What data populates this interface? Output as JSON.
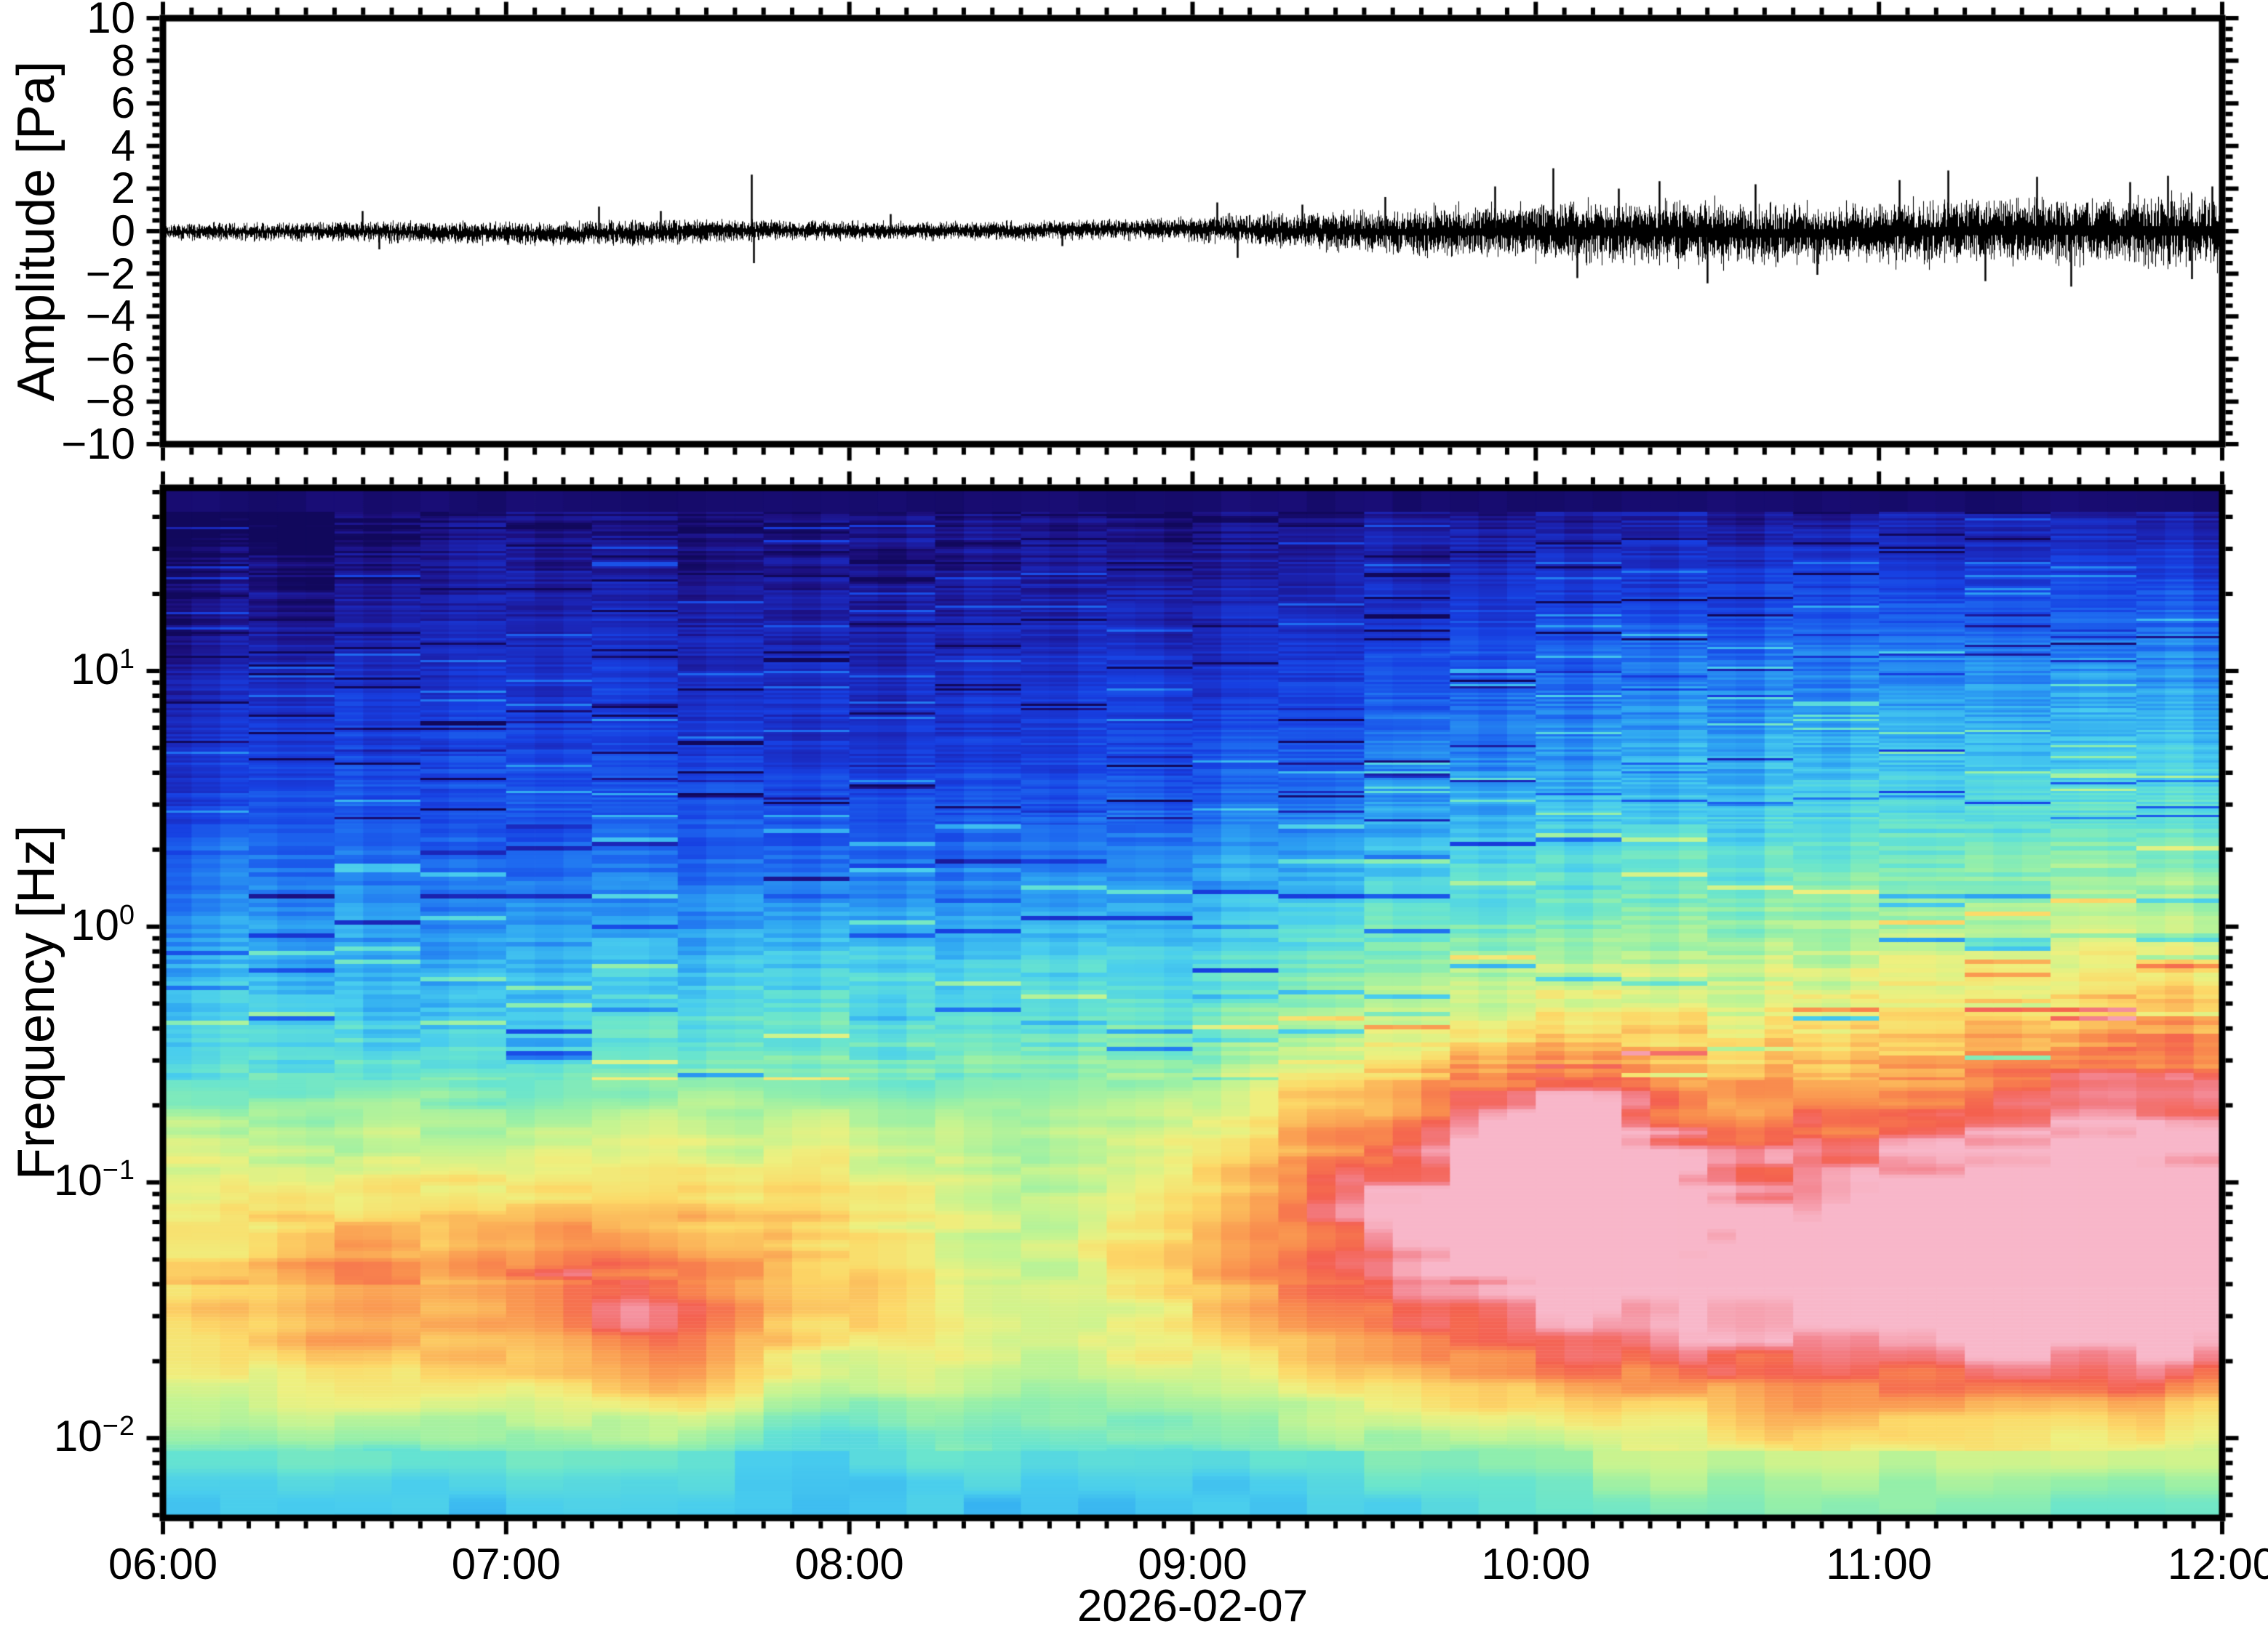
{
  "figure": {
    "background": "#ffffff",
    "frame_color": "#000000",
    "text_color": "#000000",
    "x_axis": {
      "start_hour": 6,
      "end_hour": 12,
      "major_step_min": 60,
      "minor_step_min": 5,
      "hour_ticks": [
        {
          "hour": 6,
          "label": "06:00"
        },
        {
          "hour": 7,
          "label": "07:00"
        },
        {
          "hour": 8,
          "label": "08:00"
        },
        {
          "hour": 9,
          "label": "09:00"
        },
        {
          "hour": 10,
          "label": "10:00"
        },
        {
          "hour": 11,
          "label": "11:00"
        },
        {
          "hour": 12,
          "label": "12:00"
        }
      ],
      "date_label": "2026-02-07"
    },
    "top_panel": {
      "ylabel": "Amplitude [Pa]",
      "ylim": [
        -10,
        10
      ],
      "ytick_major_pa": 2,
      "ytick_minor_pa": 0.5,
      "yticks": [
        {
          "pa": 10,
          "label": "10"
        },
        {
          "pa": 8,
          "label": "8"
        },
        {
          "pa": 6,
          "label": "6"
        },
        {
          "pa": 4,
          "label": "4"
        },
        {
          "pa": 2,
          "label": "2"
        },
        {
          "pa": 0,
          "label": "0"
        },
        {
          "pa": -2,
          "label": "−2"
        },
        {
          "pa": -4,
          "label": "−4"
        },
        {
          "pa": -6,
          "label": "−6"
        },
        {
          "pa": -8,
          "label": "−8"
        },
        {
          "pa": -10,
          "label": "−10"
        }
      ]
    },
    "bottom_panel": {
      "ylabel": "Frequency [Hz]",
      "yscale": "log",
      "flim_hz": [
        0.0049,
        52
      ],
      "yticks": [
        {
          "log10": 1,
          "mantissa": "10",
          "exponent": "1"
        },
        {
          "log10": 0,
          "mantissa": "10",
          "exponent": "0"
        },
        {
          "log10": -1,
          "mantissa": "10",
          "exponent": "−1"
        },
        {
          "log10": -2,
          "mantissa": "10",
          "exponent": "−2"
        }
      ]
    }
  },
  "chart_data": [
    {
      "type": "line",
      "name": "infrasound-waveform",
      "ylabel": "Amplitude [Pa]",
      "ylim": [
        -10,
        10
      ],
      "x_hours": [
        6,
        12
      ],
      "envelope_sigma_pa": [
        [
          6.0,
          0.21
        ],
        [
          6.5,
          0.25
        ],
        [
          6.8,
          0.29
        ],
        [
          7.15,
          0.3
        ],
        [
          7.5,
          0.33
        ],
        [
          7.8,
          0.25
        ],
        [
          8.3,
          0.23
        ],
        [
          8.8,
          0.26
        ],
        [
          9.05,
          0.33
        ],
        [
          9.3,
          0.45
        ],
        [
          9.6,
          0.58
        ],
        [
          9.9,
          0.7
        ],
        [
          10.2,
          0.78
        ],
        [
          10.6,
          0.8
        ],
        [
          10.9,
          0.76
        ],
        [
          11.2,
          0.82
        ],
        [
          11.5,
          0.85
        ],
        [
          11.75,
          0.88
        ],
        [
          12.0,
          0.9
        ]
      ],
      "spikes_pa": [
        [
          6.58,
          0.95
        ],
        [
          6.63,
          -0.85
        ],
        [
          7.27,
          1.15
        ],
        [
          7.45,
          0.95
        ],
        [
          7.715,
          2.65
        ],
        [
          7.72,
          -1.5
        ],
        [
          8.12,
          0.8
        ],
        [
          8.62,
          -0.7
        ],
        [
          9.07,
          1.35
        ],
        [
          9.13,
          -1.25
        ],
        [
          9.32,
          1.25
        ],
        [
          9.56,
          1.6
        ],
        [
          9.88,
          2.1
        ],
        [
          10.05,
          2.95
        ],
        [
          10.12,
          -2.2
        ],
        [
          10.24,
          2.0
        ],
        [
          10.36,
          2.35
        ],
        [
          10.5,
          -2.45
        ],
        [
          10.64,
          2.2
        ],
        [
          10.82,
          -2.05
        ],
        [
          11.06,
          2.4
        ],
        [
          11.2,
          2.85
        ],
        [
          11.31,
          -2.35
        ],
        [
          11.46,
          2.55
        ],
        [
          11.56,
          -2.6
        ],
        [
          11.73,
          2.3
        ],
        [
          11.84,
          2.6
        ],
        [
          11.91,
          -2.25
        ],
        [
          11.97,
          2.1
        ]
      ]
    },
    {
      "type": "heatmap",
      "name": "spectrogram",
      "yscale": "log",
      "freq_hz": [
        0.0049,
        52
      ],
      "x_hours": [
        6,
        12
      ],
      "colormap": [
        [
          0.0,
          "#0d0650"
        ],
        [
          0.06,
          "#1c0f7e"
        ],
        [
          0.13,
          "#1b24b4"
        ],
        [
          0.22,
          "#1740e2"
        ],
        [
          0.31,
          "#1e6bf0"
        ],
        [
          0.4,
          "#2fa6f2"
        ],
        [
          0.47,
          "#49cdee"
        ],
        [
          0.54,
          "#67e4d0"
        ],
        [
          0.61,
          "#95efa9"
        ],
        [
          0.67,
          "#c3f492"
        ],
        [
          0.73,
          "#eef07f"
        ],
        [
          0.78,
          "#fcd968"
        ],
        [
          0.83,
          "#fbb459"
        ],
        [
          0.88,
          "#f98d4e"
        ],
        [
          0.93,
          "#f4614f"
        ],
        [
          0.965,
          "#f3808a"
        ],
        [
          1.0,
          "#f8b7c9"
        ]
      ],
      "base_profile_logf_power": [
        [
          1.72,
          0.02
        ],
        [
          1.6,
          0.05
        ],
        [
          1.45,
          0.09
        ],
        [
          1.2,
          0.13
        ],
        [
          1.0,
          0.17
        ],
        [
          0.7,
          0.22
        ],
        [
          0.4,
          0.28
        ],
        [
          0.1,
          0.36
        ],
        [
          -0.2,
          0.45
        ],
        [
          -0.5,
          0.53
        ],
        [
          -0.8,
          0.65
        ],
        [
          -1.1,
          0.73
        ],
        [
          -1.35,
          0.77
        ],
        [
          -1.6,
          0.76
        ],
        [
          -1.8,
          0.7
        ],
        [
          -2.0,
          0.6
        ],
        [
          -2.15,
          0.5
        ],
        [
          -2.31,
          0.45
        ]
      ],
      "time_gain": [
        [
          6.0,
          0.0
        ],
        [
          6.8,
          0.05
        ],
        [
          7.6,
          0.11
        ],
        [
          8.4,
          0.16
        ],
        [
          9.0,
          0.24
        ],
        [
          9.5,
          0.38
        ],
        [
          10.0,
          0.6
        ],
        [
          10.5,
          0.75
        ],
        [
          11.0,
          0.82
        ],
        [
          11.5,
          0.92
        ],
        [
          12.0,
          1.0
        ]
      ],
      "band_weight": [
        [
          1.72,
          0.05
        ],
        [
          1.45,
          0.09
        ],
        [
          1.1,
          0.19
        ],
        [
          0.5,
          0.26
        ],
        [
          0.0,
          0.28
        ],
        [
          -0.5,
          0.26
        ],
        [
          -1.0,
          0.22
        ],
        [
          -1.5,
          0.17
        ],
        [
          -1.9,
          0.11
        ],
        [
          -2.2,
          0.08
        ],
        [
          -2.38,
          0.06
        ]
      ],
      "hot_cold_blobs": [
        [
          6.3,
          1.35,
          0.35,
          0.3,
          -0.05
        ],
        [
          6.55,
          -1.5,
          0.25,
          0.3,
          0.09
        ],
        [
          6.9,
          -0.15,
          0.35,
          0.45,
          -0.05
        ],
        [
          7.2,
          -1.35,
          0.3,
          0.3,
          0.1
        ],
        [
          7.5,
          -1.62,
          0.2,
          0.22,
          0.1
        ],
        [
          7.95,
          -2.0,
          0.2,
          0.2,
          -0.09
        ],
        [
          8.3,
          0.7,
          0.6,
          0.55,
          -0.07
        ],
        [
          8.55,
          -1.35,
          0.25,
          0.5,
          -0.1
        ],
        [
          9.0,
          -1.8,
          0.3,
          0.25,
          -0.06
        ],
        [
          9.45,
          -1.1,
          0.25,
          0.4,
          0.08
        ],
        [
          9.6,
          -0.5,
          0.4,
          0.5,
          0.06
        ],
        [
          9.95,
          -1.0,
          0.3,
          0.4,
          0.13
        ],
        [
          10.15,
          -0.8,
          0.2,
          0.3,
          0.11
        ],
        [
          10.6,
          -1.45,
          0.5,
          0.5,
          0.09
        ],
        [
          10.9,
          -2.25,
          0.5,
          0.2,
          0.06
        ],
        [
          11.3,
          -1.05,
          0.5,
          0.45,
          0.1
        ],
        [
          11.45,
          -1.28,
          0.15,
          0.12,
          0.14
        ],
        [
          11.6,
          -1.5,
          0.3,
          0.3,
          0.1
        ],
        [
          11.85,
          -0.6,
          0.3,
          0.4,
          0.08
        ]
      ],
      "noise": {
        "column_sigma": [
          0.03,
          0.04,
          0.055,
          0.055,
          0.06
        ],
        "stripe_sigma": [
          0.05,
          0.045,
          0.035,
          0.03,
          0.02
        ],
        "dark_streak_prob": 0.05,
        "dark_streak_amp": 0.2,
        "bright_streak_prob": 0.035,
        "bright_streak_amp": 0.1
      }
    }
  ]
}
